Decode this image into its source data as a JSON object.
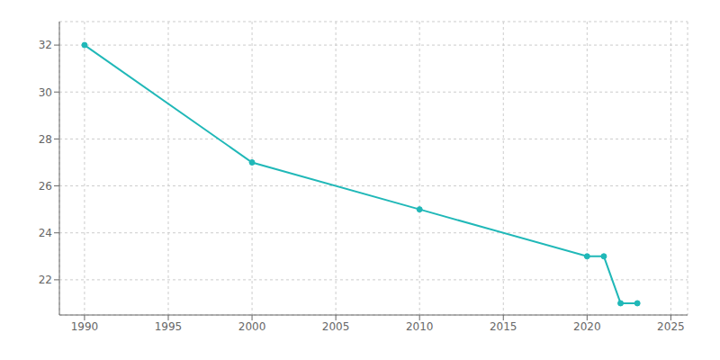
{
  "chart_data": {
    "type": "line",
    "x": [
      1990,
      2000,
      2010,
      2020,
      2021,
      2022,
      2023
    ],
    "values": [
      32,
      27,
      25,
      23,
      23,
      21,
      21
    ],
    "color": "#20b8b8",
    "marker": "o",
    "xlim": [
      1988.5,
      2026
    ],
    "ylim": [
      20.5,
      33.0
    ],
    "xticks": [
      1990,
      1995,
      2000,
      2005,
      2010,
      2015,
      2020,
      2025
    ],
    "yticks": [
      22,
      24,
      26,
      28,
      30,
      32
    ],
    "grid": true
  }
}
